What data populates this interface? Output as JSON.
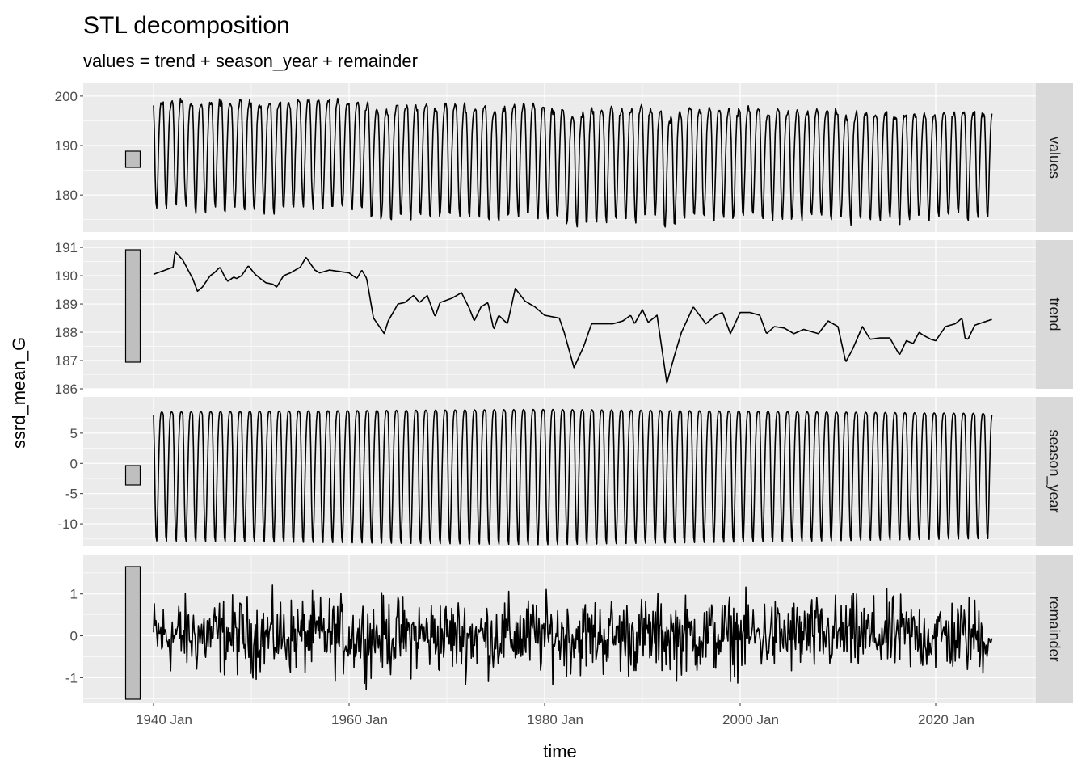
{
  "chart_data": {
    "type": "line",
    "title": "STL decomposition",
    "subtitle": "values = trend + season_year + remainder",
    "xlabel": "time",
    "ylabel": "ssrd_mean_G",
    "x_range": [
      "1940 Jan",
      "2025 Oct"
    ],
    "x_ticks": [
      "1940 Jan",
      "1960 Jan",
      "1980 Jan",
      "2000 Jan",
      "2020 Jan"
    ],
    "panels": [
      {
        "name": "values",
        "yticks": [
          180,
          190,
          200
        ],
        "ylim": [
          172.5,
          202.6
        ]
      },
      {
        "name": "trend",
        "yticks": [
          186,
          187,
          188,
          189,
          190,
          191
        ],
        "ylim": [
          186.0,
          191.26
        ]
      },
      {
        "name": "season_year",
        "yticks": [
          -10,
          -5,
          0,
          5
        ],
        "ylim": [
          -13.6,
          11.0
        ]
      },
      {
        "name": "remainder",
        "yticks": [
          -1,
          0,
          1
        ],
        "ylim": [
          -1.61,
          1.94
        ]
      }
    ],
    "trend_points": [
      [
        1940,
        190.05
      ],
      [
        1942,
        190.3
      ],
      [
        1942.2,
        190.85
      ],
      [
        1943,
        190.55
      ],
      [
        1944,
        189.9
      ],
      [
        1944.5,
        189.45
      ],
      [
        1945,
        189.6
      ],
      [
        1945.8,
        190.0
      ],
      [
        1946.2,
        190.1
      ],
      [
        1946.8,
        190.3
      ],
      [
        1947.3,
        189.95
      ],
      [
        1947.6,
        189.8
      ],
      [
        1948.2,
        189.95
      ],
      [
        1948.5,
        189.9
      ],
      [
        1949,
        190.0
      ],
      [
        1949.7,
        190.35
      ],
      [
        1950.4,
        190.05
      ],
      [
        1951.1,
        189.85
      ],
      [
        1951.5,
        189.75
      ],
      [
        1952.2,
        189.7
      ],
      [
        1952.6,
        189.6
      ],
      [
        1953.3,
        190.0
      ],
      [
        1954,
        190.1
      ],
      [
        1955,
        190.3
      ],
      [
        1955.6,
        190.65
      ],
      [
        1956.5,
        190.2
      ],
      [
        1957,
        190.1
      ],
      [
        1958,
        190.2
      ],
      [
        1959,
        190.15
      ],
      [
        1960,
        190.1
      ],
      [
        1960.8,
        189.9
      ],
      [
        1961.3,
        190.2
      ],
      [
        1961.8,
        189.9
      ],
      [
        1962.5,
        188.5
      ],
      [
        1963.6,
        187.95
      ],
      [
        1964,
        188.4
      ],
      [
        1965,
        189.0
      ],
      [
        1965.7,
        189.05
      ],
      [
        1966.6,
        189.3
      ],
      [
        1967.2,
        189.05
      ],
      [
        1968,
        189.3
      ],
      [
        1968.8,
        188.55
      ],
      [
        1969.3,
        189.05
      ],
      [
        1970.5,
        189.2
      ],
      [
        1971.5,
        189.4
      ],
      [
        1972.3,
        188.85
      ],
      [
        1972.8,
        188.4
      ],
      [
        1973.5,
        188.9
      ],
      [
        1974.2,
        189.05
      ],
      [
        1974.8,
        188.1
      ],
      [
        1975.3,
        188.6
      ],
      [
        1976.2,
        188.3
      ],
      [
        1977,
        189.55
      ],
      [
        1978,
        189.1
      ],
      [
        1979,
        188.9
      ],
      [
        1980,
        188.6
      ],
      [
        1981.5,
        188.5
      ],
      [
        1982,
        188.0
      ],
      [
        1983,
        186.75
      ],
      [
        1984,
        187.5
      ],
      [
        1984.8,
        188.3
      ],
      [
        1986,
        188.3
      ],
      [
        1987,
        188.3
      ],
      [
        1988,
        188.4
      ],
      [
        1988.8,
        188.6
      ],
      [
        1989.2,
        188.3
      ],
      [
        1990,
        188.8
      ],
      [
        1990.6,
        188.35
      ],
      [
        1991.5,
        188.6
      ],
      [
        1992.5,
        186.2
      ],
      [
        1993.3,
        187.2
      ],
      [
        1994,
        188.0
      ],
      [
        1995.2,
        188.9
      ],
      [
        1996.5,
        188.3
      ],
      [
        1997.5,
        188.6
      ],
      [
        1998.2,
        188.7
      ],
      [
        1999,
        187.95
      ],
      [
        2000,
        188.7
      ],
      [
        2001,
        188.7
      ],
      [
        2002,
        188.6
      ],
      [
        2002.7,
        187.95
      ],
      [
        2003.5,
        188.2
      ],
      [
        2004.5,
        188.15
      ],
      [
        2005.5,
        187.95
      ],
      [
        2006.5,
        188.1
      ],
      [
        2007.5,
        188.0
      ],
      [
        2008,
        187.95
      ],
      [
        2009,
        188.4
      ],
      [
        2010,
        188.2
      ],
      [
        2010.8,
        186.95
      ],
      [
        2011.5,
        187.4
      ],
      [
        2012.5,
        188.2
      ],
      [
        2013.3,
        187.75
      ],
      [
        2014.3,
        187.8
      ],
      [
        2015.3,
        187.8
      ],
      [
        2016.3,
        187.2
      ],
      [
        2017,
        187.7
      ],
      [
        2017.7,
        187.6
      ],
      [
        2018.3,
        188.0
      ],
      [
        2018.7,
        187.9
      ],
      [
        2019.5,
        187.75
      ],
      [
        2020,
        187.7
      ],
      [
        2021,
        188.2
      ],
      [
        2022,
        188.3
      ],
      [
        2022.7,
        188.5
      ],
      [
        2023,
        187.8
      ],
      [
        2023.3,
        187.75
      ],
      [
        2024,
        188.25
      ],
      [
        2025.7,
        188.45
      ]
    ],
    "season_monthly_profile": [
      8.0,
      2.5,
      -6.5,
      -12.0,
      -12.8,
      -8.5,
      -2.0,
      3.5,
      7.0,
      8.3,
      8.5,
      8.4
    ],
    "season_amplitude_points": [
      [
        1940,
        1.0
      ],
      [
        1980,
        1.05
      ],
      [
        2025.8,
        0.97
      ]
    ],
    "remainder_sd": 0.45,
    "remainder_range": [
      -1.5,
      1.65
    ]
  }
}
